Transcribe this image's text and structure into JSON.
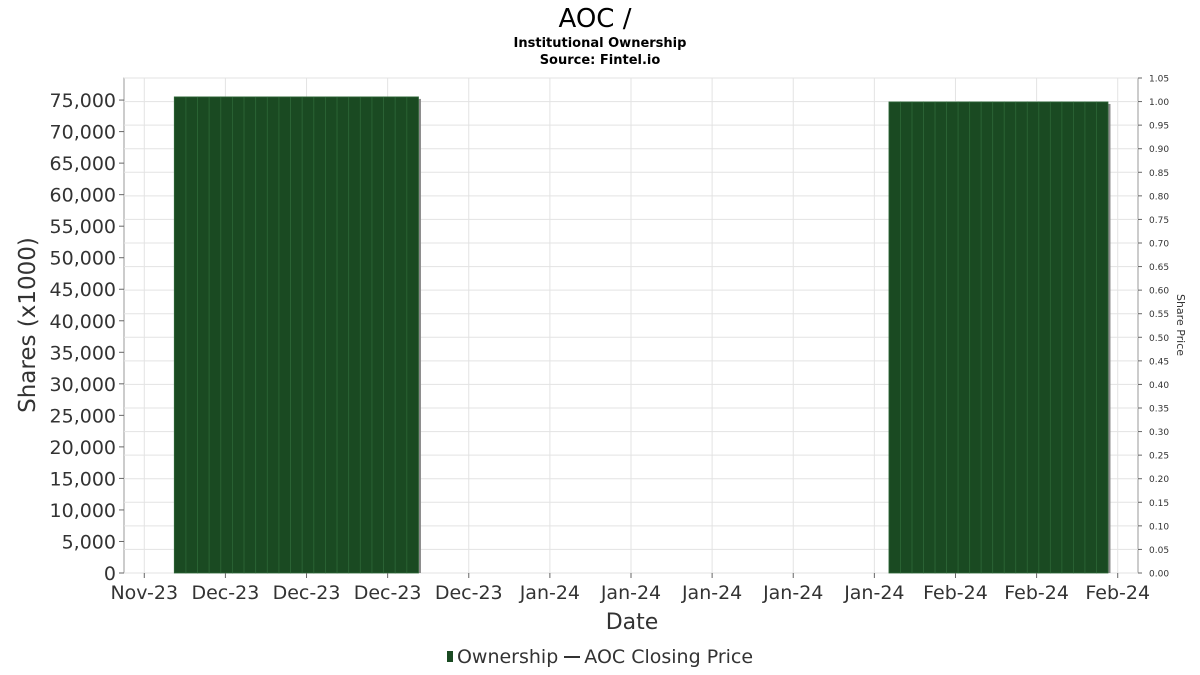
{
  "chart_data": {
    "type": "bar",
    "title": "AOC /",
    "subtitle_lines": [
      "Institutional Ownership",
      "Source: Fintel.io"
    ],
    "xlabel": "Date",
    "ylabel": "Shares (x1000)",
    "y2label": "Share Price",
    "x_tick_labels": [
      "Nov-23",
      "Dec-23",
      "Dec-23",
      "Dec-23",
      "Dec-23",
      "Jan-24",
      "Jan-24",
      "Jan-24",
      "Jan-24",
      "Jan-24",
      "Feb-24",
      "Feb-24",
      "Feb-24"
    ],
    "x_domain": [
      -0.25,
      12.25
    ],
    "ylim": [
      0,
      78500
    ],
    "y_ticks": [
      0,
      5000,
      10000,
      15000,
      20000,
      25000,
      30000,
      35000,
      40000,
      45000,
      50000,
      55000,
      60000,
      65000,
      70000,
      75000
    ],
    "y_tick_labels": [
      "0",
      "5,000",
      "10,000",
      "15,000",
      "20,000",
      "25,000",
      "30,000",
      "35,000",
      "40,000",
      "45,000",
      "50,000",
      "55,000",
      "60,000",
      "65,000",
      "70,000",
      "75,000"
    ],
    "y2lim": [
      0,
      1.05
    ],
    "y2_ticks": [
      0,
      0.05,
      0.1,
      0.15,
      0.2,
      0.25,
      0.3,
      0.35,
      0.4,
      0.45,
      0.5,
      0.55,
      0.6,
      0.65,
      0.7,
      0.75,
      0.8,
      0.85,
      0.9,
      0.95,
      1.0,
      1.05
    ],
    "y2_tick_labels": [
      "0.00",
      "0.05",
      "0.10",
      "0.15",
      "0.20",
      "0.25",
      "0.30",
      "0.35",
      "0.40",
      "0.45",
      "0.50",
      "0.55",
      "0.60",
      "0.65",
      "0.70",
      "0.75",
      "0.80",
      "0.85",
      "0.90",
      "0.95",
      "1.00",
      "1.05"
    ],
    "grid": true,
    "series": [
      {
        "name": "Ownership",
        "color": "#1a4a22",
        "spans": [
          {
            "x_start": 0.37,
            "x_end": 3.38,
            "value": 75500
          },
          {
            "x_start": 9.18,
            "x_end": 11.88,
            "value": 74700
          }
        ]
      },
      {
        "name": "AOC Closing Price",
        "color": "#333333",
        "values": []
      }
    ],
    "legend_position": "bottom"
  }
}
